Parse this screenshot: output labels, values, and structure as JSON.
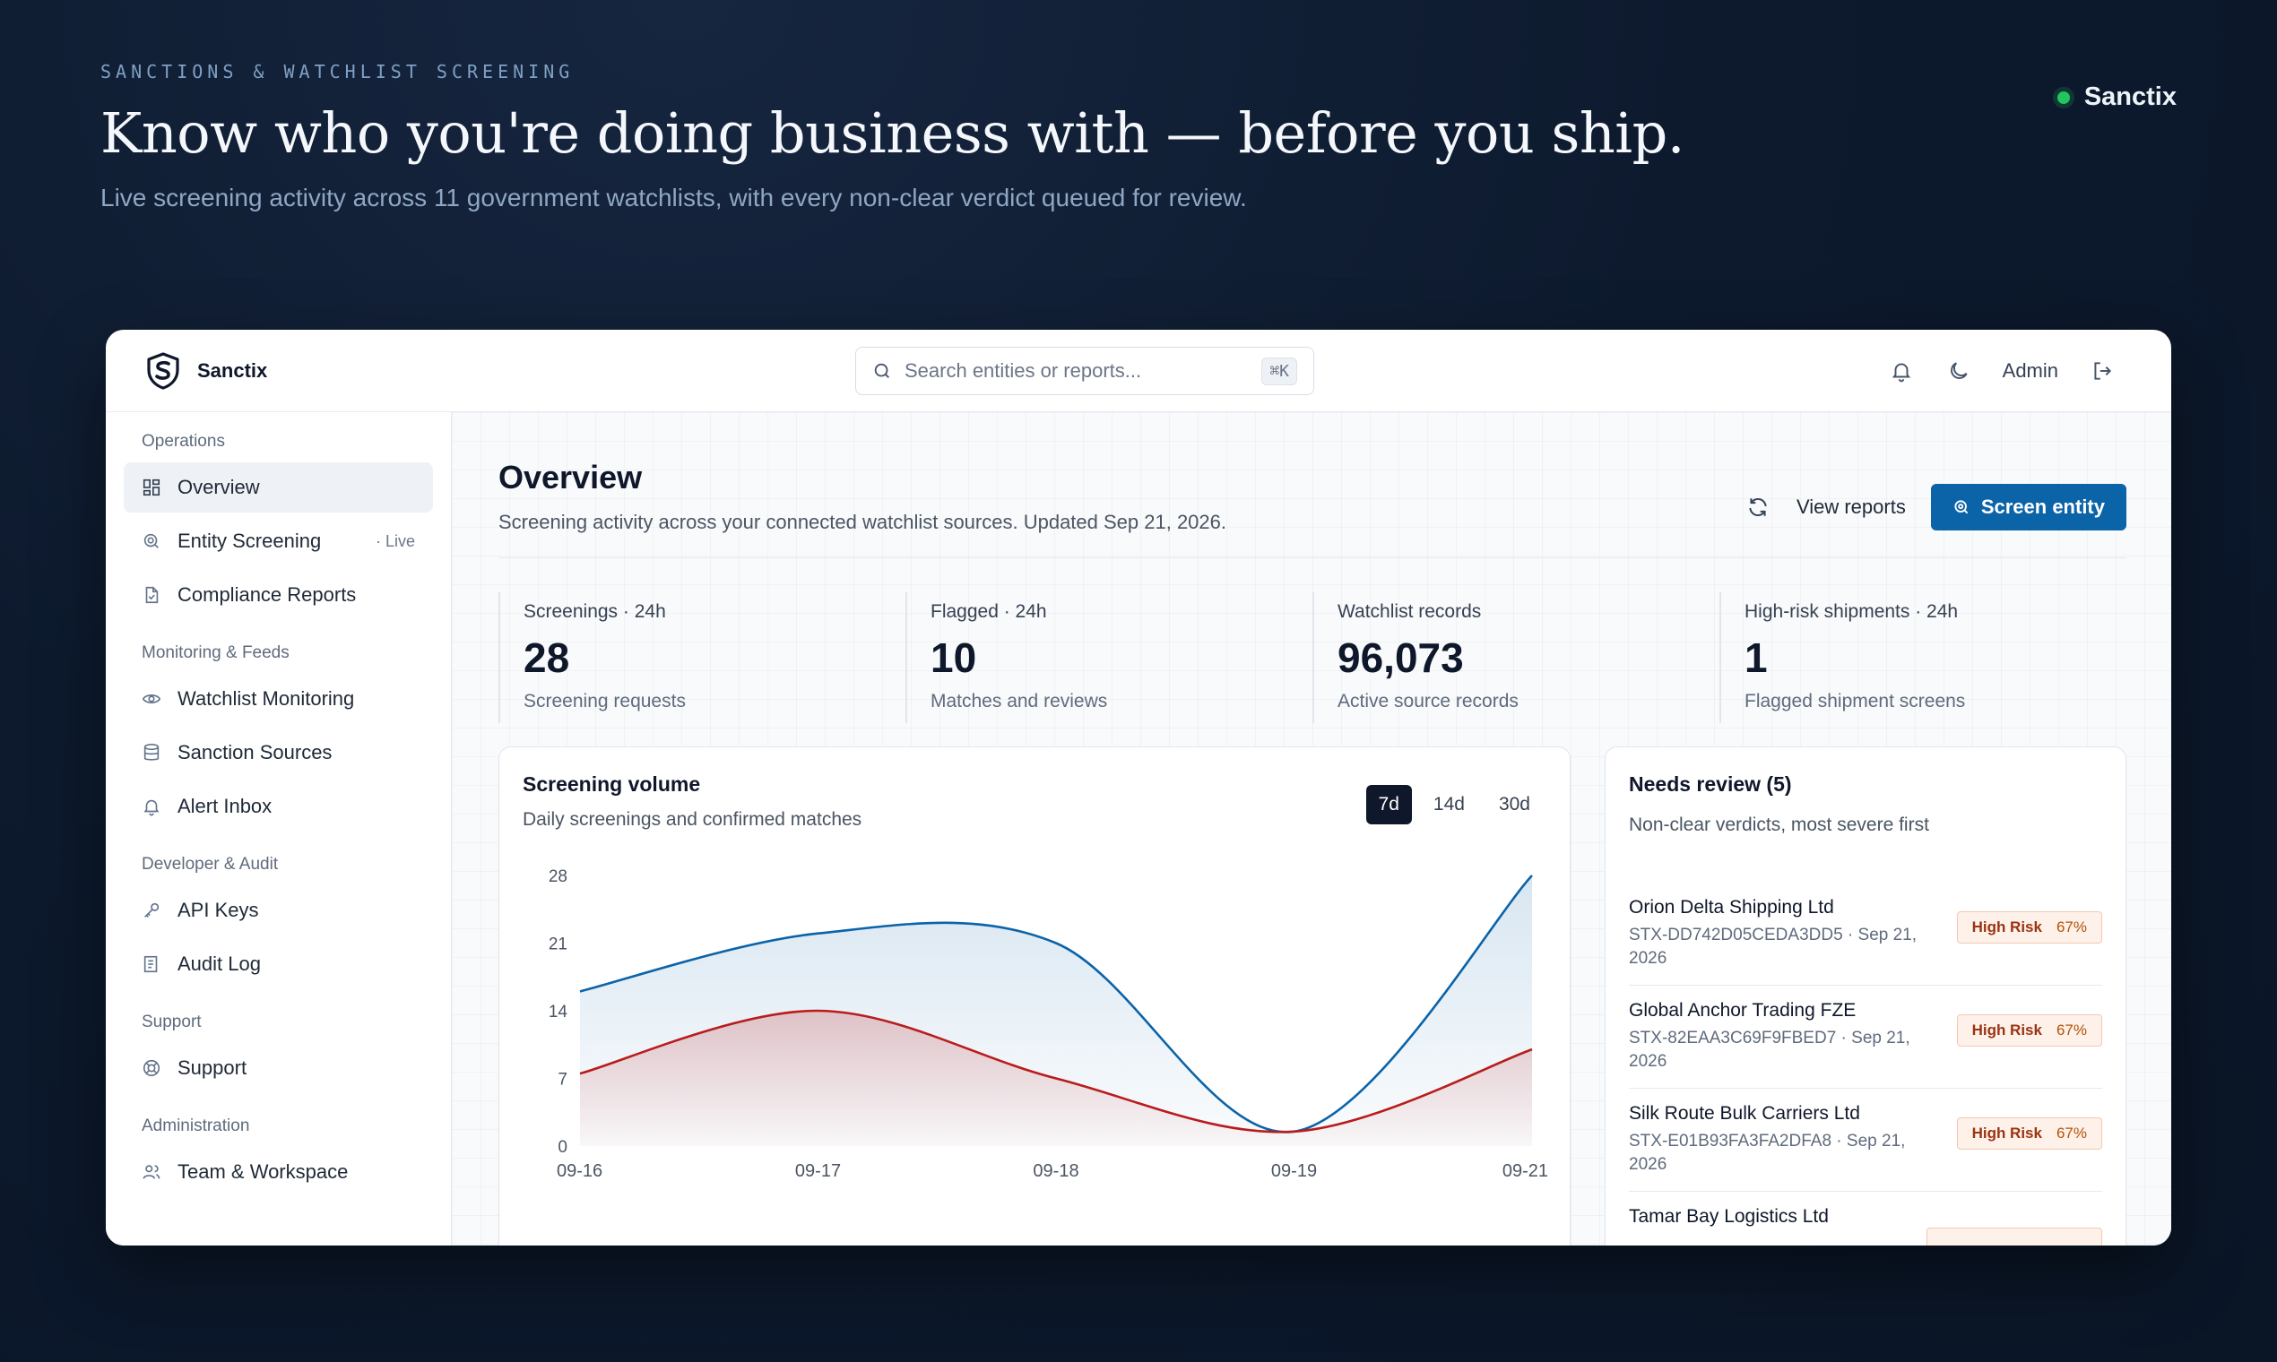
{
  "hero": {
    "eyebrow": "SANCTIONS & WATCHLIST SCREENING",
    "headline": "Know who you're doing business with — before you ship.",
    "subline": "Live screening activity across 11 government watchlists, with every non-clear verdict queued for review.",
    "brand": "Sanctix",
    "status_color": "#22c55e"
  },
  "app": {
    "name": "Sanctix",
    "search_placeholder": "Search entities or reports...",
    "search_shortcut": "⌘K",
    "user": "Admin"
  },
  "sidebar": {
    "groups": [
      {
        "heading": "Operations",
        "items": [
          {
            "label": "Overview",
            "icon": "grid-icon",
            "active": true
          },
          {
            "label": "Entity Screening",
            "icon": "search-scan-icon",
            "badge": "· Live"
          },
          {
            "label": "Compliance Reports",
            "icon": "document-check-icon"
          }
        ]
      },
      {
        "heading": "Monitoring & Feeds",
        "items": [
          {
            "label": "Watchlist Monitoring",
            "icon": "eye-icon"
          },
          {
            "label": "Sanction Sources",
            "icon": "database-icon"
          },
          {
            "label": "Alert Inbox",
            "icon": "bell-icon"
          }
        ]
      },
      {
        "heading": "Developer & Audit",
        "items": [
          {
            "label": "API Keys",
            "icon": "key-icon"
          },
          {
            "label": "Audit Log",
            "icon": "log-icon"
          }
        ]
      },
      {
        "heading": "Support",
        "items": [
          {
            "label": "Support",
            "icon": "lifebuoy-icon"
          }
        ]
      },
      {
        "heading": "Administration",
        "items": [
          {
            "label": "Team & Workspace",
            "icon": "users-icon"
          }
        ]
      }
    ]
  },
  "overview": {
    "title": "Overview",
    "subtitle": "Screening activity across your connected watchlist sources. Updated Sep 21, 2026.",
    "view_reports": "View reports",
    "screen_entity": "Screen entity",
    "accent": "#0b63a8"
  },
  "stats": [
    {
      "label": "Screenings · 24h",
      "value": "28",
      "note": "Screening requests"
    },
    {
      "label": "Flagged · 24h",
      "value": "10",
      "note": "Matches and reviews"
    },
    {
      "label": "Watchlist records",
      "value": "96,073",
      "note": "Active source records"
    },
    {
      "label": "High-risk shipments · 24h",
      "value": "1",
      "note": "Flagged shipment screens"
    }
  ],
  "volume": {
    "title": "Screening volume",
    "subtitle": "Daily screenings and confirmed matches",
    "ranges": [
      "7d",
      "14d",
      "30d"
    ],
    "selected_range": "7d"
  },
  "chart_data": {
    "type": "area",
    "title": "Screening volume",
    "x": [
      "09-16",
      "09-17",
      "09-18",
      "09-19",
      "09-21"
    ],
    "series": [
      {
        "values": [
          16,
          22,
          21,
          1.5,
          28
        ],
        "color": "#0b63a8"
      },
      {
        "values": [
          7.5,
          14,
          7,
          1.5,
          10
        ],
        "color": "#b91c1c"
      }
    ],
    "ylim": [
      0,
      28
    ],
    "yticks": [
      "28",
      "21",
      "14",
      "7",
      "0"
    ],
    "grid": false
  },
  "review": {
    "title": "Needs review (5)",
    "subtitle": "Non-clear verdicts, most severe first",
    "items": [
      {
        "name": "Orion Delta Shipping Ltd",
        "meta": "STX-DD742D05CEDA3DD5 · Sep 21, 2026",
        "risk": "High Risk",
        "pct": "67%"
      },
      {
        "name": "Global Anchor Trading FZE",
        "meta": "STX-82EAA3C69F9FBED7 · Sep 21, 2026",
        "risk": "High Risk",
        "pct": "67%"
      },
      {
        "name": "Silk Route Bulk Carriers Ltd",
        "meta": "STX-E01B93FA3FA2DFA8 · Sep 21, 2026",
        "risk": "High Risk",
        "pct": "67%"
      },
      {
        "name": "Tamar Bay Logistics Ltd",
        "meta": "",
        "risk": "",
        "pct": ""
      }
    ]
  }
}
